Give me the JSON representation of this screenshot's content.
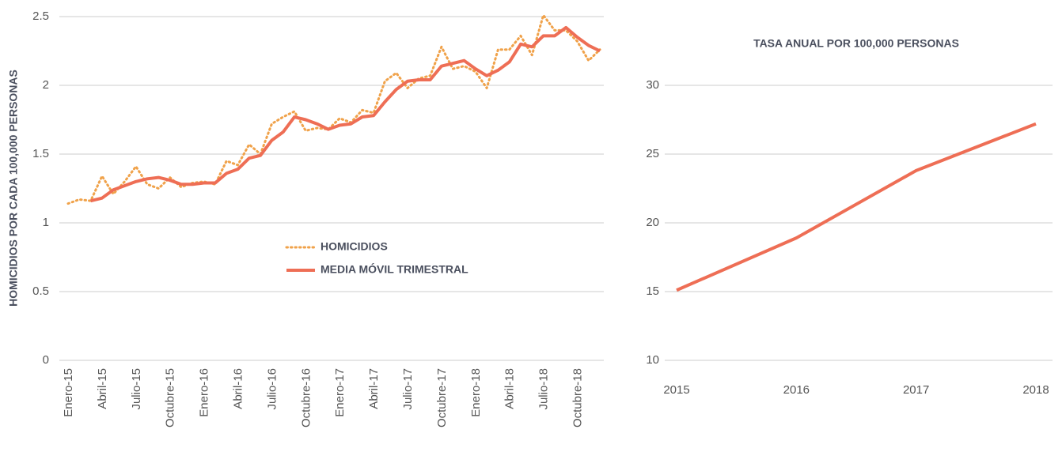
{
  "chart_data": [
    {
      "type": "line",
      "ylabel": "HOMICIDIOS POR CADA 100,000 PERSONAS",
      "categories": [
        "Enero-15",
        null,
        null,
        "Abril-15",
        null,
        null,
        "Julio-15",
        null,
        null,
        "Octubre-15",
        null,
        null,
        "Enero-16",
        null,
        null,
        "Abril-16",
        null,
        null,
        "Julio-16",
        null,
        null,
        "Octubre-16",
        null,
        null,
        "Enero-17",
        null,
        null,
        "Abril-17",
        null,
        null,
        "Julio-17",
        null,
        null,
        "Octubre-17",
        null,
        null,
        "Enero-18",
        null,
        null,
        "Abril-18",
        null,
        null,
        "Julio-18",
        null,
        null,
        "Octubre-18",
        null,
        null
      ],
      "series": [
        {
          "name": "HOMICIDIOS",
          "color": "#f0a24a",
          "dashed": true,
          "values": [
            1.14,
            1.17,
            1.16,
            1.34,
            1.21,
            1.3,
            1.41,
            1.28,
            1.25,
            1.33,
            1.26,
            1.29,
            1.3,
            1.28,
            1.45,
            1.42,
            1.57,
            1.5,
            1.72,
            1.77,
            1.81,
            1.67,
            1.69,
            1.68,
            1.76,
            1.73,
            1.82,
            1.8,
            2.03,
            2.09,
            1.98,
            2.05,
            2.07,
            2.28,
            2.12,
            2.14,
            2.1,
            1.98,
            2.26,
            2.26,
            2.36,
            2.22,
            2.51,
            2.4,
            2.4,
            2.32,
            2.18,
            2.26
          ]
        },
        {
          "name": "MEDIA MÓVIL TRIMESTRAL",
          "color": "#ee6e55",
          "dashed": false,
          "values": [
            null,
            null,
            1.16,
            1.18,
            1.24,
            1.27,
            1.3,
            1.32,
            1.33,
            1.31,
            1.28,
            1.28,
            1.29,
            1.29,
            1.36,
            1.39,
            1.47,
            1.49,
            1.6,
            1.66,
            1.77,
            1.75,
            1.72,
            1.68,
            1.71,
            1.72,
            1.77,
            1.78,
            1.88,
            1.97,
            2.03,
            2.04,
            2.04,
            2.14,
            2.16,
            2.18,
            2.12,
            2.07,
            2.11,
            2.17,
            2.3,
            2.28,
            2.36,
            2.36,
            2.42,
            2.35,
            2.29,
            2.25
          ]
        }
      ],
      "ylim": [
        0,
        2.5
      ],
      "yticks": [
        0,
        0.5,
        1,
        1.5,
        2,
        2.5
      ],
      "grid": true
    },
    {
      "type": "line",
      "title": "TASA ANUAL POR 100,000 PERSONAS",
      "categories": [
        "2015",
        "2016",
        "2017",
        "2018"
      ],
      "series": [
        {
          "name": null,
          "color": "#ee6e55",
          "dashed": false,
          "values": [
            15.1,
            18.9,
            23.8,
            27.2
          ]
        }
      ],
      "ylim": [
        10,
        30
      ],
      "yticks": [
        10,
        15,
        20,
        25,
        30
      ],
      "grid": true
    }
  ]
}
